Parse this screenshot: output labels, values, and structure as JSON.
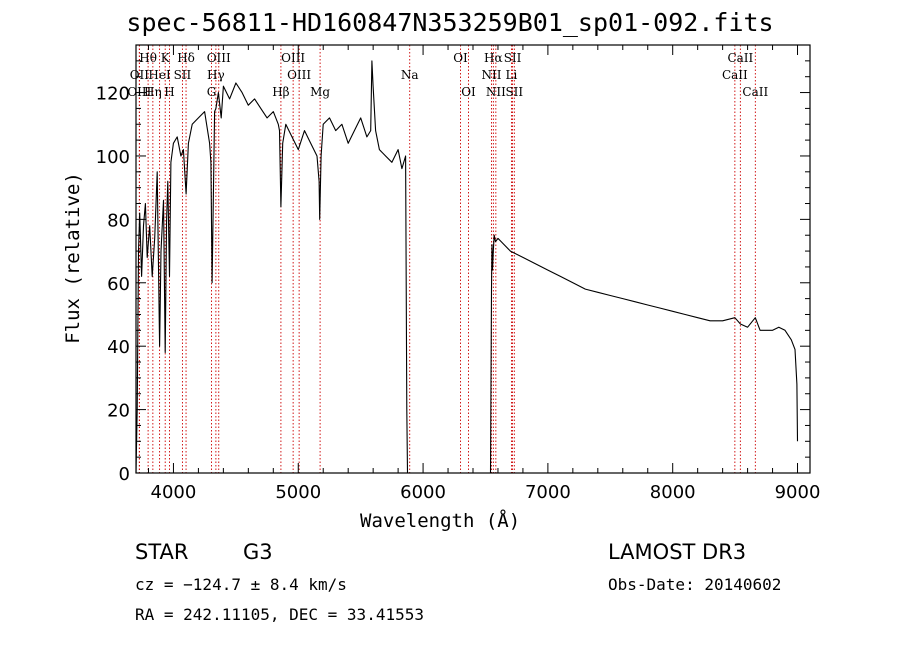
{
  "chart_data": {
    "type": "line",
    "title": "spec-56811-HD160847N353259B01_sp01-092.fits",
    "xlabel": "Wavelength (Å)",
    "ylabel": "Flux (relative)",
    "xlim": [
      3700,
      9100
    ],
    "ylim": [
      0,
      135
    ],
    "x_ticks": [
      4000,
      5000,
      6000,
      7000,
      8000,
      9000
    ],
    "y_ticks": [
      0,
      20,
      40,
      60,
      80,
      100,
      120
    ],
    "series": [
      {
        "name": "flux",
        "x": [
          3700,
          3710,
          3720,
          3730,
          3745,
          3760,
          3775,
          3790,
          3810,
          3830,
          3850,
          3870,
          3889,
          3900,
          3920,
          3934,
          3945,
          3955,
          3968,
          3980,
          4000,
          4030,
          4060,
          4080,
          4101,
          4120,
          4150,
          4200,
          4250,
          4290,
          4300,
          4310,
          4330,
          4340,
          4360,
          4383,
          4400,
          4450,
          4500,
          4550,
          4600,
          4650,
          4700,
          4750,
          4800,
          4840,
          4850,
          4861,
          4875,
          4900,
          4950,
          5000,
          5050,
          5100,
          5150,
          5167,
          5172,
          5183,
          5200,
          5250,
          5300,
          5350,
          5400,
          5450,
          5500,
          5550,
          5580,
          5590,
          5600,
          5620,
          5650,
          5700,
          5750,
          5800,
          5830,
          5860,
          5870,
          5875,
          5880,
          6540,
          6548,
          6552,
          6556,
          6563,
          6570,
          6580,
          6600,
          6650,
          6700,
          6800,
          6900,
          7000,
          7100,
          7200,
          7300,
          7400,
          7500,
          7600,
          7700,
          7800,
          7900,
          8000,
          8100,
          8200,
          8300,
          8400,
          8498,
          8542,
          8600,
          8662,
          8700,
          8800,
          8850,
          8900,
          8950,
          8980,
          8995,
          9000
        ],
        "values": [
          0,
          20,
          70,
          82,
          62,
          78,
          85,
          68,
          78,
          62,
          74,
          95,
          40,
          70,
          86,
          38,
          80,
          92,
          62,
          98,
          104,
          106,
          100,
          102,
          88,
          104,
          110,
          112,
          114,
          104,
          98,
          60,
          114,
          115,
          120,
          112,
          122,
          118,
          123,
          120,
          116,
          118,
          115,
          112,
          114,
          110,
          108,
          84,
          104,
          110,
          106,
          102,
          108,
          104,
          100,
          92,
          80,
          100,
          110,
          112,
          108,
          110,
          104,
          108,
          112,
          106,
          108,
          130,
          122,
          108,
          102,
          100,
          98,
          102,
          96,
          100,
          20,
          0,
          0,
          0,
          58,
          72,
          64,
          70,
          75,
          73,
          74,
          72,
          70,
          68,
          66,
          64,
          62,
          60,
          58,
          57,
          56,
          55,
          54,
          53,
          52,
          51,
          50,
          49,
          48,
          48,
          49,
          47,
          46,
          49,
          45,
          45,
          46,
          45,
          42,
          39,
          28,
          10
        ]
      }
    ],
    "spectral_lines": [
      {
        "label": "Hθ",
        "wavelength": 3797,
        "row": 0
      },
      {
        "label": "K",
        "wavelength": 3934,
        "row": 0
      },
      {
        "label": "Hδ",
        "wavelength": 4101,
        "row": 0
      },
      {
        "label": "OIII",
        "wavelength": 4363,
        "row": 0
      },
      {
        "label": "OIII",
        "wavelength": 4959,
        "row": 0
      },
      {
        "label": "OI",
        "wavelength": 6300,
        "row": 0
      },
      {
        "label": "Hα",
        "wavelength": 6563,
        "row": 0
      },
      {
        "label": "SII",
        "wavelength": 6717,
        "row": 0
      },
      {
        "label": "CaII",
        "wavelength": 8542,
        "row": 0
      },
      {
        "label": "OII",
        "wavelength": 3727,
        "row": 1
      },
      {
        "label": "HeI",
        "wavelength": 3889,
        "row": 1
      },
      {
        "label": "SII",
        "wavelength": 4072,
        "row": 1
      },
      {
        "label": "Hγ",
        "wavelength": 4340,
        "row": 1
      },
      {
        "label": "OIII",
        "wavelength": 5007,
        "row": 1
      },
      {
        "label": "Na",
        "wavelength": 5893,
        "row": 1
      },
      {
        "label": "NII",
        "wavelength": 6548,
        "row": 1
      },
      {
        "label": "Li",
        "wavelength": 6708,
        "row": 1
      },
      {
        "label": "CaII",
        "wavelength": 8498,
        "row": 1
      },
      {
        "label": "OIII",
        "wavelength": 3727,
        "row": 2
      },
      {
        "label": "Hη",
        "wavelength": 3835,
        "row": 2
      },
      {
        "label": "H",
        "wavelength": 3968,
        "row": 2
      },
      {
        "label": "G",
        "wavelength": 4305,
        "row": 2
      },
      {
        "label": "Hβ",
        "wavelength": 4861,
        "row": 2
      },
      {
        "label": "Mg",
        "wavelength": 5175,
        "row": 2
      },
      {
        "label": "OI",
        "wavelength": 6364,
        "row": 2
      },
      {
        "label": "NII",
        "wavelength": 6583,
        "row": 2
      },
      {
        "label": "SII",
        "wavelength": 6731,
        "row": 2
      },
      {
        "label": "CaII",
        "wavelength": 8662,
        "row": 2
      }
    ]
  },
  "info": {
    "object_type": "STAR",
    "object_class": "G3",
    "survey": "LAMOST DR3",
    "cz": "cz = −124.7 ± 8.4 km/s",
    "obs_date": "Obs-Date: 20140602",
    "radec": "RA = 242.11105, DEC =  33.41553"
  },
  "colors": {
    "line": "#000000",
    "marker": "#cc0000",
    "axis": "#000000"
  }
}
